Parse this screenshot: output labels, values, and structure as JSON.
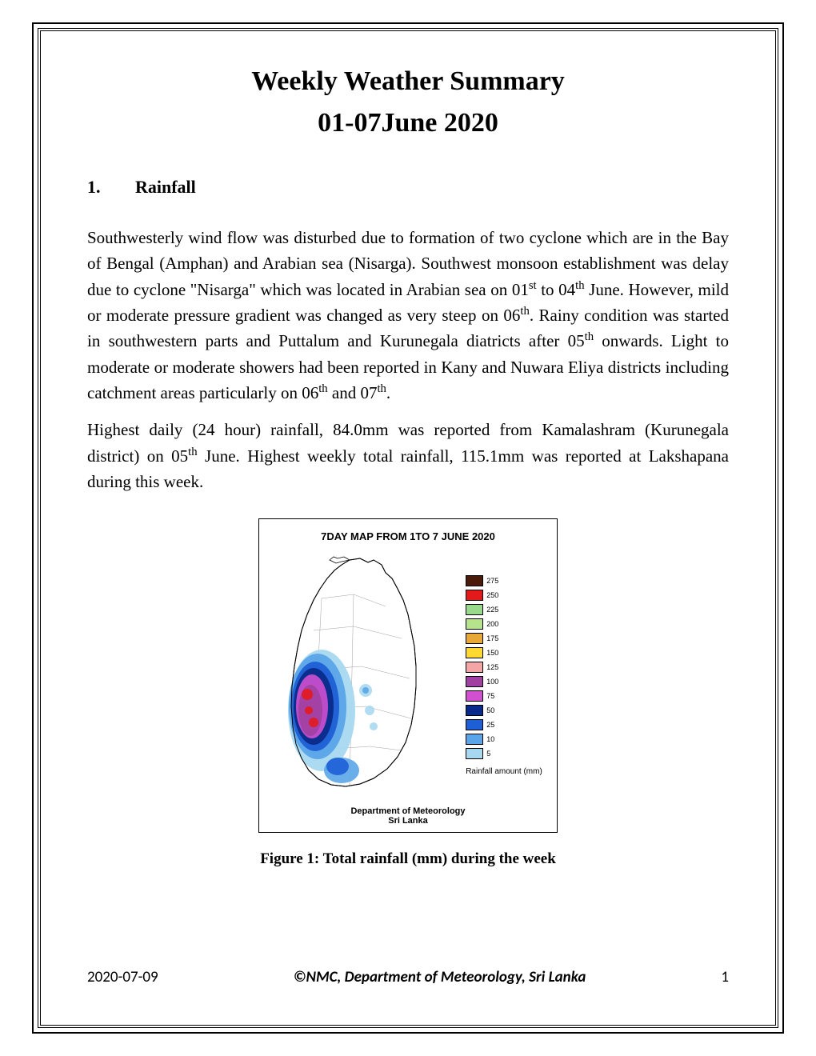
{
  "page": {
    "title": "Weekly Weather Summary",
    "subtitle": "01-07June 2020",
    "section": {
      "number": "1.",
      "heading": "Rainfall"
    },
    "paragraph1_parts": {
      "p1": "Southwesterly wind flow was disturbed due to formation of two cyclone which are in the Bay of Bengal (Amphan) and Arabian sea (Nisarga). Southwest monsoon establishment was delay due to cyclone \"Nisarga\" which was located in Arabian sea on 01",
      "s1": "st",
      "p2": " to 04",
      "s2": "th",
      "p3": " June. However, mild or moderate pressure gradient was changed as very steep on 06",
      "s3": "th",
      "p4": ". Rainy condition was started in southwestern parts and Puttalum and Kurunegala diatricts after 05",
      "s4": "th",
      "p5": " onwards. Light to moderate or moderate showers had been reported in Kany and Nuwara Eliya districts including catchment areas particularly on 06",
      "s5": "th",
      "p6": " and 07",
      "s6": "th",
      "p7": "."
    },
    "paragraph2_parts": {
      "p1": "Highest daily (24 hour) rainfall, 84.0mm was reported from Kamalashram (Kurunegala district) on 05",
      "s1": "th",
      "p2": " June.  Highest weekly total rainfall, 115.1mm was reported at Lakshapana during this week."
    },
    "figure": {
      "map_title": "7DAY MAP FROM 1TO 7 JUNE 2020",
      "dept": "Department of Meteorology",
      "country": "Sri Lanka",
      "caption": "Figure 1: Total rainfall (mm) during the week",
      "legend_title": "Rainfall amount (mm)",
      "legend": [
        {
          "color": "#4a1a0a",
          "value": "275"
        },
        {
          "color": "#e31a1c",
          "value": "250"
        },
        {
          "color": "#99d98c",
          "value": "225"
        },
        {
          "color": "#b5e48c",
          "value": "200"
        },
        {
          "color": "#e8a838",
          "value": "175"
        },
        {
          "color": "#ffd92f",
          "value": "150"
        },
        {
          "color": "#f4a6a6",
          "value": "125"
        },
        {
          "color": "#a040a0",
          "value": "100"
        },
        {
          "color": "#d050d0",
          "value": "75"
        },
        {
          "color": "#0a2a8a",
          "value": "50"
        },
        {
          "color": "#1e5fd6",
          "value": "25"
        },
        {
          "color": "#5aa5e8",
          "value": "10"
        },
        {
          "color": "#a8d8f0",
          "value": "5"
        }
      ]
    },
    "footer": {
      "date": "2020-07-09",
      "copyright": "©NMC, Department of Meteorology, Sri Lanka",
      "page_num": "1"
    }
  }
}
